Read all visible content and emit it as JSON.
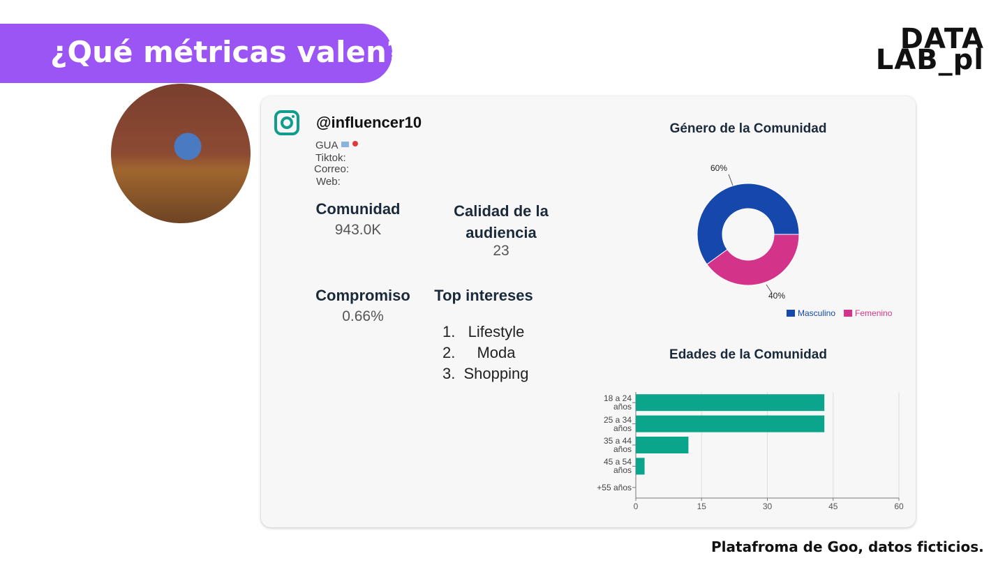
{
  "header": {
    "title": "¿Qué métricas valen?"
  },
  "logo": {
    "line1": "DATA",
    "line2": "LAB_pl"
  },
  "profile": {
    "handle": "@influencer10",
    "location": "GUA",
    "fields": [
      "Tiktok:",
      "Correo:",
      "Web:"
    ]
  },
  "metrics": {
    "comunidad": {
      "label": "Comunidad",
      "value": "943.0K"
    },
    "calidad": {
      "label": "Calidad de la audiencia",
      "value": "23"
    },
    "compromiso": {
      "label": "Compromiso",
      "value": "0.66%"
    },
    "intereses": {
      "label": "Top intereses",
      "items": [
        {
          "number": "1.",
          "label": "Lifestyle"
        },
        {
          "number": "2.",
          "label": "Moda"
        },
        {
          "number": "3.",
          "label": "Shopping"
        }
      ]
    }
  },
  "footer": "Platafroma de Goo, datos ficticios.",
  "chart_data": [
    {
      "type": "pie",
      "donut": true,
      "title": "Género de la Comunidad",
      "categories": [
        "Masculino",
        "Femenino"
      ],
      "values": [
        60,
        40
      ],
      "value_labels": [
        "60%",
        "40%"
      ],
      "colors": [
        "#1547ad",
        "#d3348a"
      ],
      "legend": "bottom-right"
    },
    {
      "type": "hbar",
      "title": "Edades de la Comunidad",
      "categories": [
        "18 a 24 años",
        "25 a 34 años",
        "35 a 44 años",
        "45 a 54 años",
        "+55 años"
      ],
      "values": [
        43,
        43,
        12,
        2,
        0
      ],
      "color": "#0aa58b",
      "xlim": [
        0,
        60
      ],
      "xticks": [
        0,
        15,
        30,
        45,
        60
      ],
      "grid": true
    }
  ]
}
